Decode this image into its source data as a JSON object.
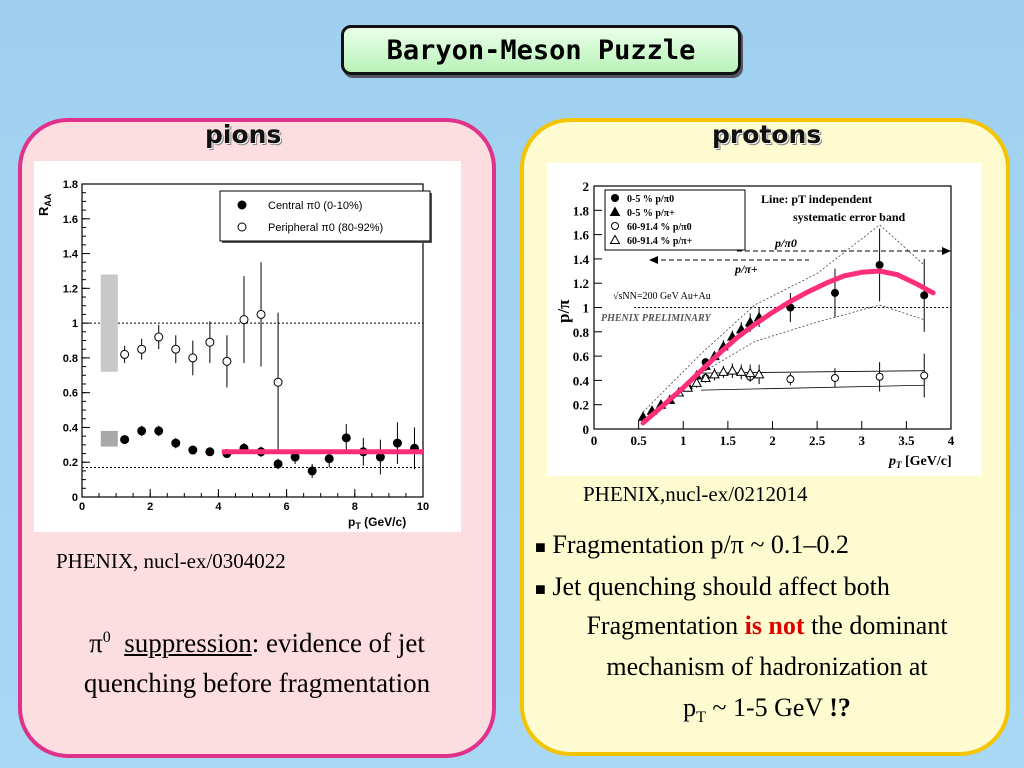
{
  "title": "Baryon-Meson Puzzle",
  "left_panel": {
    "heading": "pions",
    "citation": "PHENIX, nucl-ex/0304022",
    "caption_symbol": "π",
    "caption_sup": "0",
    "caption_underlined": "suppression",
    "caption_line1_rest": ": evidence of jet",
    "caption_line2": "quenching before fragmentation"
  },
  "right_panel": {
    "heading": "protons",
    "citation": "PHENIX,nucl-ex/0212014",
    "bullets": [
      "Fragmentation p/π ~ 0.1–0.2",
      "Jet quenching should affect both"
    ],
    "conclusion_pre": "Fragmentation ",
    "conclusion_emph": "is not",
    "conclusion_post": " the dominant",
    "conclusion_line2": "mechanism of hadronization at",
    "conclusion_line3_p": "p",
    "conclusion_line3_sub": "T",
    "conclusion_line3_rest": " ~ 1-5 GeV ",
    "conclusion_line3_bang": "!?",
    "emph_color": "#e00000"
  },
  "chart_data": [
    {
      "type": "scatter",
      "title": "",
      "xlabel": "p_T (GeV/c)",
      "ylabel": "R_AA",
      "xlim": [
        0,
        10
      ],
      "ylim": [
        0,
        1.8
      ],
      "x_ticks": [
        "0",
        "2",
        "4",
        "6",
        "8",
        "10"
      ],
      "y_ticks": [
        "0",
        "0.2",
        "0.4",
        "0.6",
        "0.8",
        "1",
        "1.2",
        "1.4",
        "1.6",
        "1.8"
      ],
      "legend": {
        "position": "top-right",
        "entries": [
          "Central π0 (0-10%)",
          "Peripheral π0 (80-92%)"
        ]
      },
      "series": [
        {
          "name": "Central π0 (0-10%)",
          "marker": "filled-circle",
          "x": [
            1.25,
            1.75,
            2.25,
            2.75,
            3.25,
            3.75,
            4.25,
            4.75,
            5.25,
            5.75,
            6.25,
            6.75,
            7.25,
            7.75,
            8.25,
            8.75,
            9.25,
            9.75
          ],
          "y": [
            0.33,
            0.38,
            0.38,
            0.31,
            0.27,
            0.26,
            0.25,
            0.28,
            0.26,
            0.19,
            0.23,
            0.15,
            0.22,
            0.34,
            0.26,
            0.23,
            0.31,
            0.28
          ],
          "err": [
            0.02,
            0.03,
            0.03,
            0.03,
            0.02,
            0.02,
            0.02,
            0.03,
            0.03,
            0.03,
            0.04,
            0.04,
            0.05,
            0.08,
            0.08,
            0.1,
            0.12,
            0.12
          ]
        },
        {
          "name": "Peripheral π0 (80-92%)",
          "marker": "open-circle",
          "x": [
            1.25,
            1.75,
            2.25,
            2.75,
            3.25,
            3.75,
            4.25,
            4.75,
            5.25,
            5.75
          ],
          "y": [
            0.82,
            0.85,
            0.92,
            0.85,
            0.8,
            0.89,
            0.78,
            1.02,
            1.05,
            0.66
          ],
          "err": [
            0.05,
            0.06,
            0.07,
            0.08,
            0.1,
            0.12,
            0.15,
            0.25,
            0.3,
            0.4
          ]
        }
      ],
      "reference_lines": [
        1.0,
        0.17
      ],
      "fit_line": {
        "x": [
          4.1,
          10.0
        ],
        "y": [
          0.26,
          0.26
        ],
        "color": "#ff2e7a"
      },
      "syst_boxes": [
        {
          "x": [
            0.55,
            1.05
          ],
          "y": [
            0.72,
            1.28
          ],
          "color": "#c8c8c8"
        },
        {
          "x": [
            0.55,
            1.05
          ],
          "y": [
            0.29,
            0.38
          ],
          "color": "#a8a8a8"
        }
      ]
    },
    {
      "type": "scatter",
      "title": "",
      "xlabel": "p_T [GeV/c]",
      "ylabel": "p/π",
      "xlim": [
        0,
        4
      ],
      "ylim": [
        0,
        2
      ],
      "x_ticks": [
        "0",
        "0.5",
        "1",
        "1.5",
        "2",
        "2.5",
        "3",
        "3.5",
        "4"
      ],
      "y_ticks": [
        "0",
        "0.2",
        "0.4",
        "0.6",
        "0.8",
        "1",
        "1.2",
        "1.4",
        "1.6",
        "1.8",
        "2"
      ],
      "legend": {
        "position": "top-left",
        "entries": [
          "0-5 %   p/π0",
          "0-5 %   p/π+",
          "60-91.4 %   p/π0",
          "60-91.4 %   p/π+"
        ]
      },
      "annotations": [
        "Line: pT independent",
        "systematic error band",
        "p/π0",
        "p/π+",
        "√sNN=200 GeV Au+Au",
        "PHENIX PRELIMINARY"
      ],
      "reference_lines": [
        1.0
      ],
      "series": [
        {
          "name": "0-5 %   p/π0",
          "marker": "filled-circle",
          "x": [
            1.25,
            1.75,
            2.2,
            2.7,
            3.2,
            3.7
          ],
          "y": [
            0.55,
            0.85,
            1.0,
            1.12,
            1.35,
            1.1
          ],
          "err": [
            0.03,
            0.05,
            0.12,
            0.2,
            0.3,
            0.3
          ]
        },
        {
          "name": "0-5 %   p/π+",
          "marker": "filled-triangle",
          "x": [
            0.55,
            0.65,
            0.75,
            0.85,
            0.95,
            1.05,
            1.15,
            1.25,
            1.35,
            1.45,
            1.55,
            1.65,
            1.75,
            1.85
          ],
          "y": [
            0.1,
            0.15,
            0.2,
            0.24,
            0.3,
            0.36,
            0.44,
            0.52,
            0.6,
            0.68,
            0.76,
            0.82,
            0.88,
            0.92
          ],
          "err": [
            0.01,
            0.01,
            0.02,
            0.02,
            0.02,
            0.03,
            0.03,
            0.04,
            0.04,
            0.05,
            0.05,
            0.06,
            0.07,
            0.08
          ]
        },
        {
          "name": "60-91.4 %   p/π0",
          "marker": "open-circle",
          "x": [
            1.25,
            1.75,
            2.2,
            2.7,
            3.2,
            3.7
          ],
          "y": [
            0.42,
            0.43,
            0.41,
            0.42,
            0.43,
            0.44
          ],
          "err": [
            0.03,
            0.04,
            0.05,
            0.08,
            0.12,
            0.18
          ]
        },
        {
          "name": "60-91.4 %   p/π+",
          "marker": "open-triangle",
          "x": [
            0.95,
            1.05,
            1.15,
            1.25,
            1.35,
            1.45,
            1.55,
            1.65,
            1.75,
            1.85
          ],
          "y": [
            0.3,
            0.34,
            0.38,
            0.42,
            0.45,
            0.47,
            0.48,
            0.47,
            0.46,
            0.45
          ],
          "err": [
            0.03,
            0.03,
            0.04,
            0.04,
            0.05,
            0.05,
            0.06,
            0.06,
            0.07,
            0.08
          ]
        }
      ],
      "fit_curve": {
        "color": "#ff2e7a",
        "x": [
          0.55,
          0.8,
          1.0,
          1.2,
          1.4,
          1.6,
          1.8,
          2.0,
          2.2,
          2.4,
          2.6,
          2.8,
          3.0,
          3.2,
          3.4,
          3.6,
          3.8
        ],
        "y": [
          0.05,
          0.21,
          0.34,
          0.48,
          0.62,
          0.75,
          0.86,
          0.96,
          1.05,
          1.13,
          1.2,
          1.26,
          1.29,
          1.3,
          1.27,
          1.2,
          1.12
        ]
      }
    }
  ]
}
